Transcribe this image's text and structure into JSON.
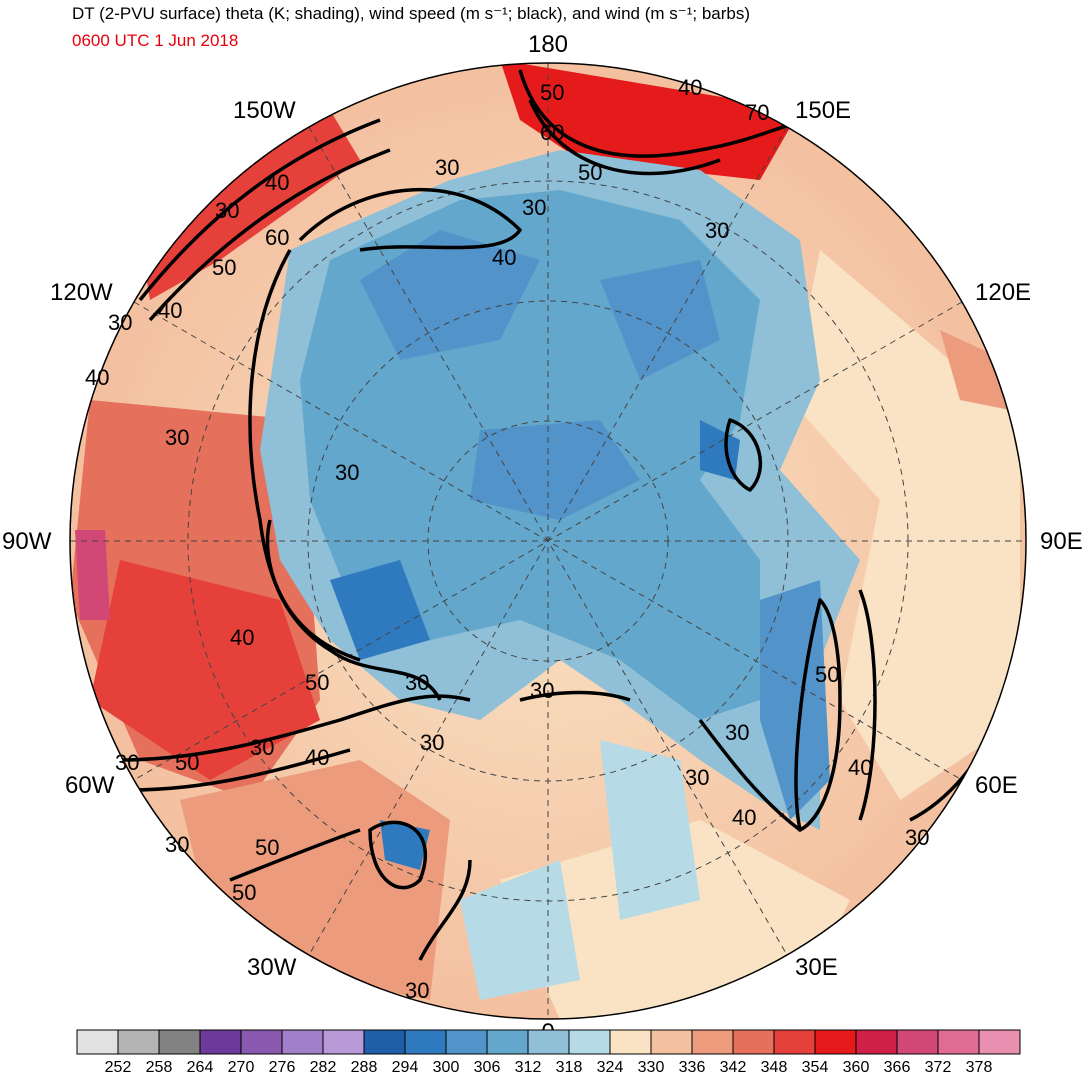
{
  "header": {
    "title": "DT (2-PVU surface) theta (K; shading), wind speed (m s⁻¹; black), and wind (m s⁻¹; barbs)",
    "valid_time": "0600 UTC 1 Jun 2018"
  },
  "map": {
    "projection": "north-polar-stereographic",
    "longitude_labels": [
      {
        "id": "lon-180",
        "text": "180"
      },
      {
        "id": "lon-150e",
        "text": "150E"
      },
      {
        "id": "lon-120e",
        "text": "120E"
      },
      {
        "id": "lon-90e",
        "text": "90E"
      },
      {
        "id": "lon-60e",
        "text": "60E"
      },
      {
        "id": "lon-30e",
        "text": "30E"
      },
      {
        "id": "lon-0",
        "text": "0"
      },
      {
        "id": "lon-30w",
        "text": "30W"
      },
      {
        "id": "lon-60w",
        "text": "60W"
      },
      {
        "id": "lon-90w",
        "text": "90W"
      },
      {
        "id": "lon-120w",
        "text": "120W"
      },
      {
        "id": "lon-150w",
        "text": "150W"
      }
    ],
    "wind_speed_contour_labels": [
      "30",
      "40",
      "50",
      "60",
      "70"
    ]
  },
  "colorbar": {
    "colors": [
      "#e1e1e1",
      "#b4b4b4",
      "#828282",
      "#6b3a9a",
      "#8a5ab0",
      "#a27fc9",
      "#b89ad9",
      "#1f5ea8",
      "#2f7abf",
      "#5293c9",
      "#63a8cc",
      "#8fc0d8",
      "#b6dbe6",
      "#f9e3c4",
      "#f3c0a0",
      "#ec9c7c",
      "#e5705b",
      "#e5413a",
      "#e51a1a",
      "#cf2148",
      "#d14775",
      "#e06b93",
      "#e98fb0"
    ],
    "tick_labels": [
      "252",
      "258",
      "264",
      "270",
      "276",
      "282",
      "288",
      "294",
      "300",
      "306",
      "312",
      "318",
      "324",
      "330",
      "336",
      "342",
      "348",
      "354",
      "360",
      "366",
      "372",
      "378"
    ]
  }
}
